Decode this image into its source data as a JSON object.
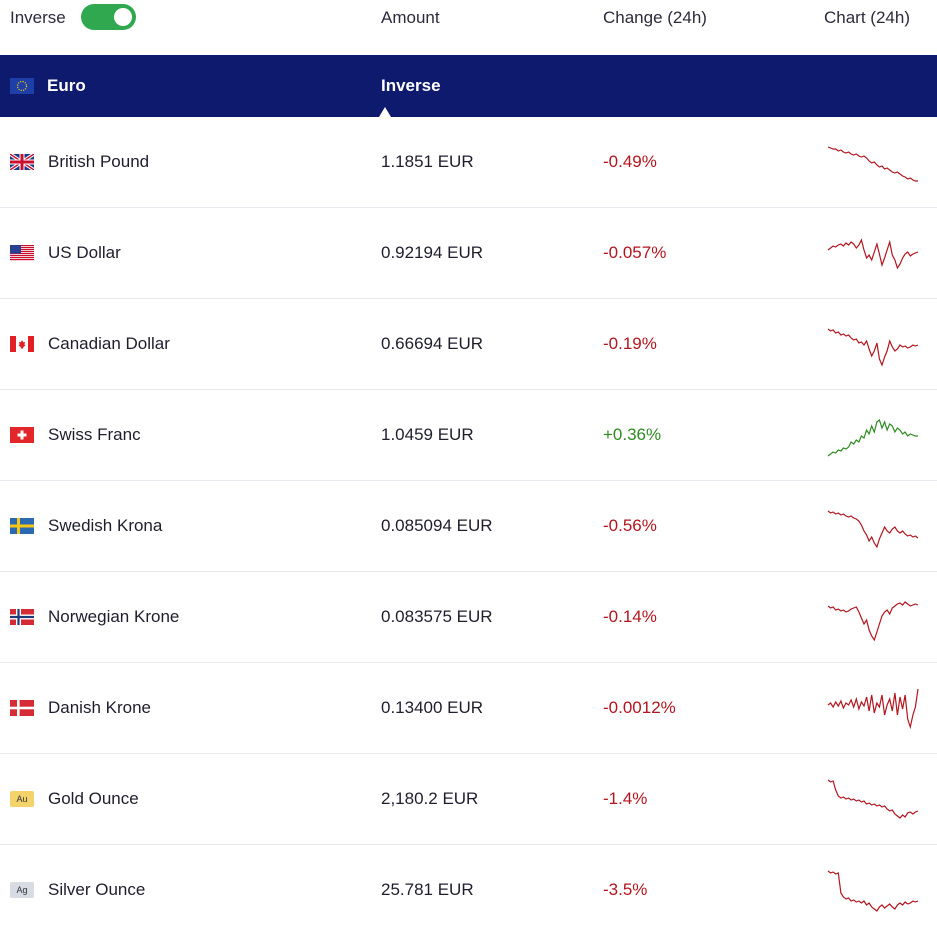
{
  "header": {
    "inverse_label": "Inverse",
    "inverse_on": true,
    "col_amount": "Amount",
    "col_change": "Change (24h)",
    "col_chart": "Chart (24h)"
  },
  "base": {
    "name": "Euro",
    "label": "Inverse",
    "flag": "eu-flag-icon"
  },
  "colors": {
    "brand_navy": "#0d1a6e",
    "negative": "#b3151f",
    "positive": "#2e8b20",
    "toggle_on": "#2fa84f"
  },
  "rows": [
    {
      "name": "British Pound",
      "amount": "1.1851 EUR",
      "change": "-0.49%",
      "trend": "down",
      "flag": "gb-flag-icon",
      "spark": [
        8,
        9,
        10,
        10,
        12,
        11,
        13,
        14,
        13,
        15,
        16,
        15,
        17,
        18,
        17,
        19,
        22,
        24,
        23,
        26,
        28,
        27,
        30,
        29,
        31,
        33,
        34,
        33,
        35,
        37,
        38,
        40,
        39,
        41,
        42,
        42
      ]
    },
    {
      "name": "US Dollar",
      "amount": "0.92194 EUR",
      "change": "-0.057%",
      "trend": "down",
      "flag": "us-flag-icon",
      "spark": [
        20,
        18,
        16,
        17,
        15,
        14,
        16,
        13,
        15,
        12,
        14,
        18,
        15,
        10,
        20,
        28,
        25,
        30,
        22,
        14,
        24,
        35,
        28,
        20,
        12,
        25,
        30,
        38,
        34,
        28,
        24,
        22,
        26,
        24,
        23,
        22
      ]
    },
    {
      "name": "Canadian Dollar",
      "amount": "0.66694 EUR",
      "change": "-0.19%",
      "trend": "down",
      "flag": "ca-flag-icon",
      "spark": [
        8,
        10,
        9,
        12,
        11,
        14,
        13,
        15,
        14,
        17,
        19,
        18,
        22,
        21,
        24,
        20,
        28,
        35,
        30,
        22,
        38,
        44,
        36,
        30,
        20,
        26,
        30,
        28,
        24,
        26,
        25,
        27,
        26,
        24,
        25,
        24
      ]
    },
    {
      "name": "Swiss Franc",
      "amount": "1.0459 EUR",
      "change": "+0.36%",
      "trend": "up",
      "flag": "ch-flag-icon",
      "spark": [
        44,
        42,
        40,
        41,
        38,
        39,
        36,
        37,
        35,
        30,
        32,
        28,
        30,
        24,
        26,
        18,
        22,
        14,
        20,
        10,
        8,
        16,
        10,
        18,
        12,
        14,
        20,
        16,
        18,
        22,
        20,
        24,
        22,
        23,
        24,
        24
      ]
    },
    {
      "name": "Swedish Krona",
      "amount": "0.085094 EUR",
      "change": "-0.56%",
      "trend": "down",
      "flag": "se-flag-icon",
      "spark": [
        8,
        10,
        9,
        11,
        10,
        12,
        11,
        13,
        14,
        13,
        15,
        16,
        18,
        22,
        28,
        32,
        38,
        34,
        40,
        44,
        36,
        30,
        24,
        28,
        30,
        26,
        24,
        28,
        30,
        28,
        31,
        33,
        32,
        34,
        33,
        35
      ]
    },
    {
      "name": "Norwegian Krone",
      "amount": "0.083575 EUR",
      "change": "-0.14%",
      "trend": "down",
      "flag": "no-flag-icon",
      "spark": [
        12,
        14,
        13,
        16,
        15,
        17,
        16,
        18,
        17,
        15,
        14,
        13,
        18,
        24,
        30,
        26,
        36,
        42,
        46,
        38,
        30,
        22,
        18,
        16,
        20,
        14,
        12,
        10,
        9,
        11,
        8,
        10,
        12,
        11,
        10,
        11
      ]
    },
    {
      "name": "Danish Krone",
      "amount": "0.13400 EUR",
      "change": "-0.0012%",
      "trend": "down",
      "flag": "dk-flag-icon",
      "spark": [
        20,
        18,
        22,
        17,
        21,
        16,
        23,
        18,
        20,
        15,
        22,
        14,
        24,
        17,
        21,
        12,
        26,
        10,
        28,
        18,
        22,
        10,
        30,
        20,
        14,
        26,
        8,
        30,
        12,
        24,
        10,
        34,
        42,
        30,
        22,
        4
      ]
    },
    {
      "name": "Gold Ounce",
      "amount": "2,180.2 EUR",
      "change": "-1.4%",
      "trend": "down",
      "flag": "au-badge-icon",
      "badge": "Au",
      "spark": [
        4,
        6,
        5,
        14,
        20,
        22,
        21,
        23,
        22,
        24,
        23,
        25,
        24,
        26,
        25,
        28,
        27,
        29,
        28,
        30,
        29,
        31,
        30,
        33,
        35,
        34,
        38,
        40,
        42,
        39,
        41,
        37,
        36,
        38,
        36,
        35
      ]
    },
    {
      "name": "Silver Ounce",
      "amount": "25.781 EUR",
      "change": "-3.5%",
      "trend": "down",
      "flag": "ag-badge-icon",
      "badge": "Ag",
      "spark": [
        4,
        6,
        5,
        7,
        6,
        26,
        30,
        32,
        31,
        34,
        33,
        35,
        34,
        36,
        34,
        38,
        36,
        40,
        42,
        44,
        40,
        38,
        41,
        39,
        37,
        40,
        42,
        38,
        36,
        38,
        35,
        37,
        36,
        34,
        35,
        34
      ]
    }
  ]
}
